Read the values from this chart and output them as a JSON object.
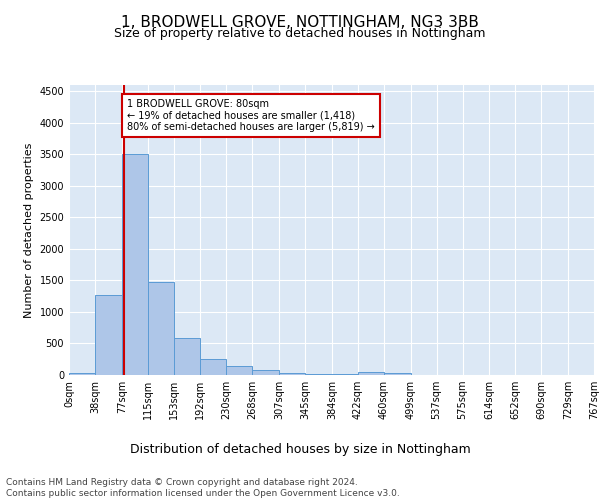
{
  "title": "1, BRODWELL GROVE, NOTTINGHAM, NG3 3BB",
  "subtitle": "Size of property relative to detached houses in Nottingham",
  "xlabel": "Distribution of detached houses by size in Nottingham",
  "ylabel": "Number of detached properties",
  "bar_edges": [
    0,
    38,
    77,
    115,
    153,
    192,
    230,
    268,
    307,
    345,
    384,
    422,
    460,
    499,
    537,
    575,
    614,
    652,
    690,
    729,
    767
  ],
  "bar_heights": [
    30,
    1270,
    3500,
    1480,
    580,
    250,
    135,
    80,
    35,
    15,
    10,
    40,
    35,
    0,
    0,
    0,
    0,
    0,
    0,
    0
  ],
  "bar_color": "#aec6e8",
  "bar_edge_color": "#5b9bd5",
  "property_line_x": 80,
  "annotation_text": "1 BRODWELL GROVE: 80sqm\n← 19% of detached houses are smaller (1,418)\n80% of semi-detached houses are larger (5,819) →",
  "annotation_box_color": "#ffffff",
  "annotation_box_edge": "#cc0000",
  "property_line_color": "#cc0000",
  "ylim": [
    0,
    4600
  ],
  "yticks": [
    0,
    500,
    1000,
    1500,
    2000,
    2500,
    3000,
    3500,
    4000,
    4500
  ],
  "tick_labels": [
    "0sqm",
    "38sqm",
    "77sqm",
    "115sqm",
    "153sqm",
    "192sqm",
    "230sqm",
    "268sqm",
    "307sqm",
    "345sqm",
    "384sqm",
    "422sqm",
    "460sqm",
    "499sqm",
    "537sqm",
    "575sqm",
    "614sqm",
    "652sqm",
    "690sqm",
    "729sqm",
    "767sqm"
  ],
  "background_color": "#dce8f5",
  "grid_color": "#ffffff",
  "footer_text": "Contains HM Land Registry data © Crown copyright and database right 2024.\nContains public sector information licensed under the Open Government Licence v3.0.",
  "title_fontsize": 11,
  "subtitle_fontsize": 9,
  "xlabel_fontsize": 9,
  "ylabel_fontsize": 8,
  "tick_fontsize": 7,
  "footer_fontsize": 6.5,
  "fig_bg": "#ffffff"
}
